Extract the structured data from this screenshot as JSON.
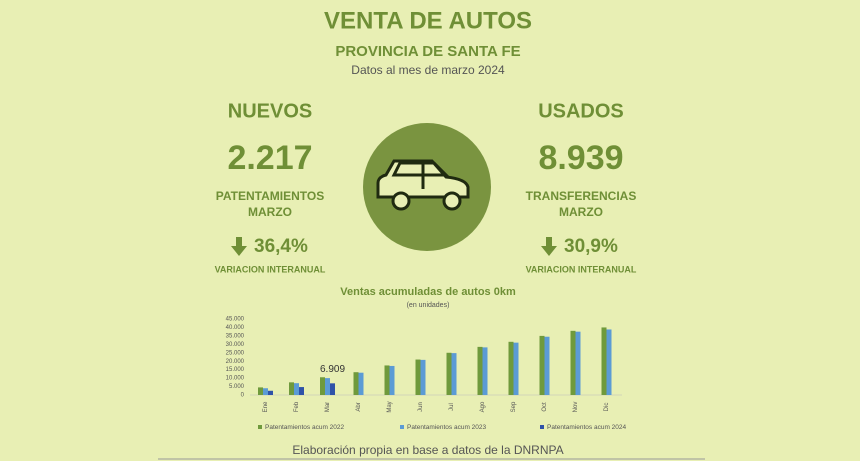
{
  "header": {
    "title": "VENTA DE AUTOS",
    "subtitle": "PROVINCIA DE SANTA FE",
    "date": "Datos al mes de marzo 2024"
  },
  "left": {
    "heading": "NUEVOS",
    "number": "2.217",
    "label_1": "PATENTAMIENTOS",
    "label_2": "MARZO",
    "change": "36,4%",
    "change_label": "VARIACION INTERANUAL"
  },
  "right": {
    "heading": "USADOS",
    "number": "8.939",
    "label_1": "TRANSFERENCIAS",
    "label_2": "MARZO",
    "change": "30,9%",
    "change_label": "VARIACION INTERANUAL"
  },
  "chart_data": {
    "type": "bar",
    "title": "Ventas acumuladas de autos 0km",
    "subtitle": "(en unidades)",
    "categories": [
      "Ene",
      "Feb",
      "Mar",
      "Abr",
      "May",
      "Jun",
      "Jul",
      "Ago",
      "Sep",
      "Oct",
      "Nov",
      "Dic"
    ],
    "series": [
      {
        "name": "Patentamientos acum 2022",
        "color": "#6f9a3c",
        "values": [
          4500,
          7500,
          10500,
          13500,
          17500,
          21000,
          25000,
          28500,
          31500,
          35000,
          38000,
          40000
        ]
      },
      {
        "name": "Patentamientos acum 2023",
        "color": "#5b9bd5",
        "values": [
          4000,
          7000,
          10000,
          13200,
          17200,
          20800,
          24800,
          28200,
          31000,
          34500,
          37500,
          38800
        ]
      },
      {
        "name": "Patentamientos acum 2024",
        "color": "#2f52a8",
        "values": [
          2500,
          4700,
          6909,
          null,
          null,
          null,
          null,
          null,
          null,
          null,
          null,
          null
        ],
        "value_labels": [
          null,
          null,
          "6.909",
          null,
          null,
          null,
          null,
          null,
          null,
          null,
          null,
          null
        ]
      }
    ],
    "ylim": [
      0,
      45000
    ],
    "yticks": [
      0,
      {
        "value": 5000,
        "label": "5.000"
      },
      {
        "value": 10000,
        "label": "10.000"
      },
      {
        "value": 15000,
        "label": "15.000"
      },
      {
        "value": 20000,
        "label": "20.000"
      },
      {
        "value": 25000,
        "label": "25.000"
      },
      {
        "value": 30000,
        "label": "30.000"
      },
      {
        "value": 35000,
        "label": "35.000"
      },
      {
        "value": 40000,
        "label": "40.000"
      },
      {
        "value": 45000,
        "label": "45.000"
      }
    ],
    "grid": false
  },
  "footer": "Elaboración propia en base a datos de la DNRNPA"
}
